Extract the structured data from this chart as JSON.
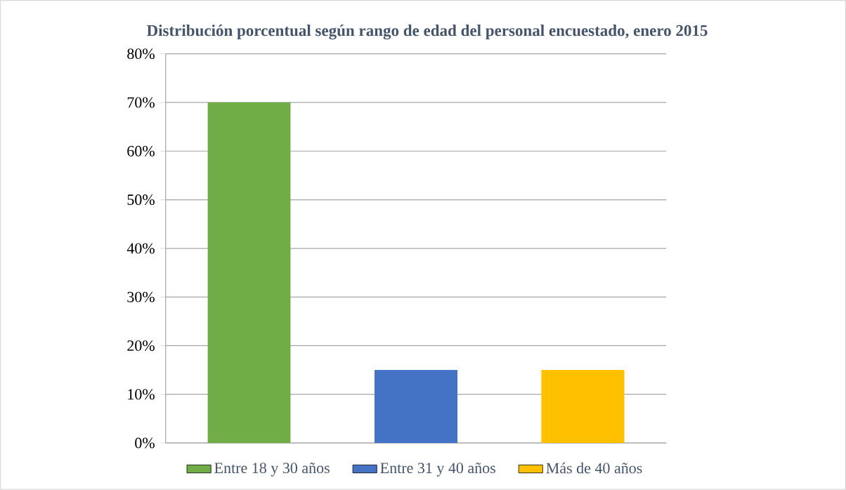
{
  "chart_data": {
    "type": "bar",
    "title": "Distribución porcentual según rango de edad del personal encuestado, enero 2015",
    "categories": [
      null,
      null,
      null
    ],
    "series": [
      {
        "name": "Entre 18 y 30 años",
        "color": "#70ad47",
        "values": [
          70,
          null,
          null
        ]
      },
      {
        "name": "Entre 31 y 40 años",
        "color": "#4472c4",
        "values": [
          null,
          15,
          null
        ]
      },
      {
        "name": "Más de 40 años",
        "color": "#ffc000",
        "values": [
          null,
          null,
          15
        ]
      }
    ],
    "ylim": [
      0,
      80
    ],
    "yticks": [
      {
        "value": 0,
        "label": "0%"
      },
      {
        "value": 10,
        "label": "10%"
      },
      {
        "value": 20,
        "label": "20%"
      },
      {
        "value": 30,
        "label": "30%"
      },
      {
        "value": 40,
        "label": "40%"
      },
      {
        "value": 50,
        "label": "50%"
      },
      {
        "value": 60,
        "label": "60%"
      },
      {
        "value": 70,
        "label": "70%"
      },
      {
        "value": 80,
        "label": "80%"
      }
    ],
    "grid": "y",
    "legend": "bottom",
    "tick_labels": "y"
  }
}
